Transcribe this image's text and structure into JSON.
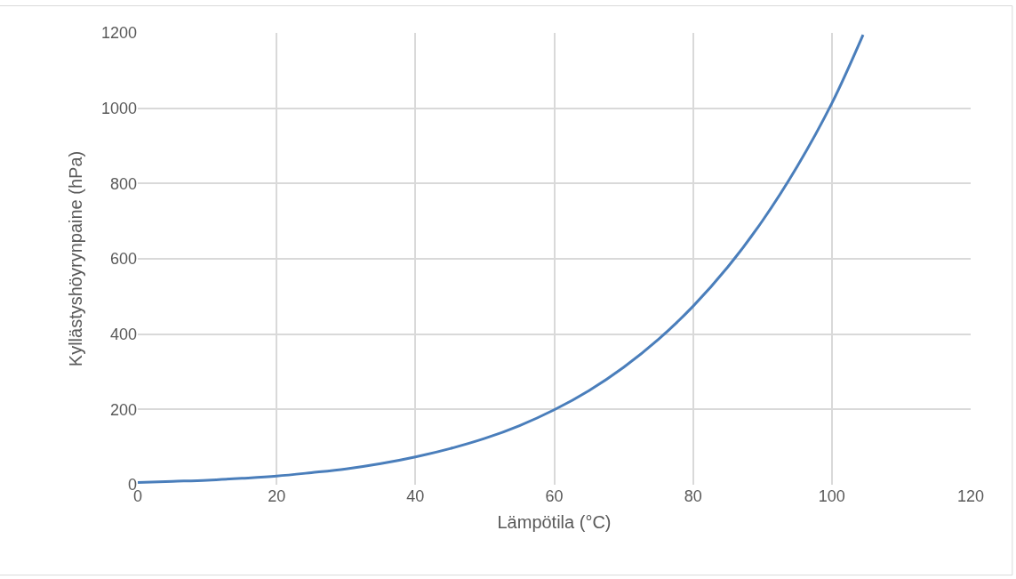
{
  "chart_data": {
    "type": "line",
    "xlabel": "Lämpötila (°C)",
    "ylabel": "Kyllästyshöyrynpaine (hPa)",
    "x": [
      0,
      5,
      10,
      15,
      20,
      25,
      30,
      35,
      40,
      45,
      50,
      55,
      60,
      65,
      70,
      75,
      80,
      85,
      90,
      95,
      100,
      104.5
    ],
    "series": [
      {
        "color": "#4a7ebb",
        "values": [
          6,
          9,
          12,
          17,
          23,
          32,
          42,
          56,
          74,
          96,
          123,
          157,
          199,
          250,
          312,
          386,
          474,
          578,
          701,
          845,
          1013,
          1195
        ]
      }
    ],
    "xlim": [
      0,
      120
    ],
    "xticks": [
      0,
      20,
      40,
      60,
      80,
      100,
      120
    ],
    "ylim": [
      0,
      1200
    ],
    "yticks": [
      0,
      200,
      400,
      600,
      800,
      1000,
      1200
    ],
    "grid": true,
    "marker": "none",
    "line_style": "solid"
  }
}
